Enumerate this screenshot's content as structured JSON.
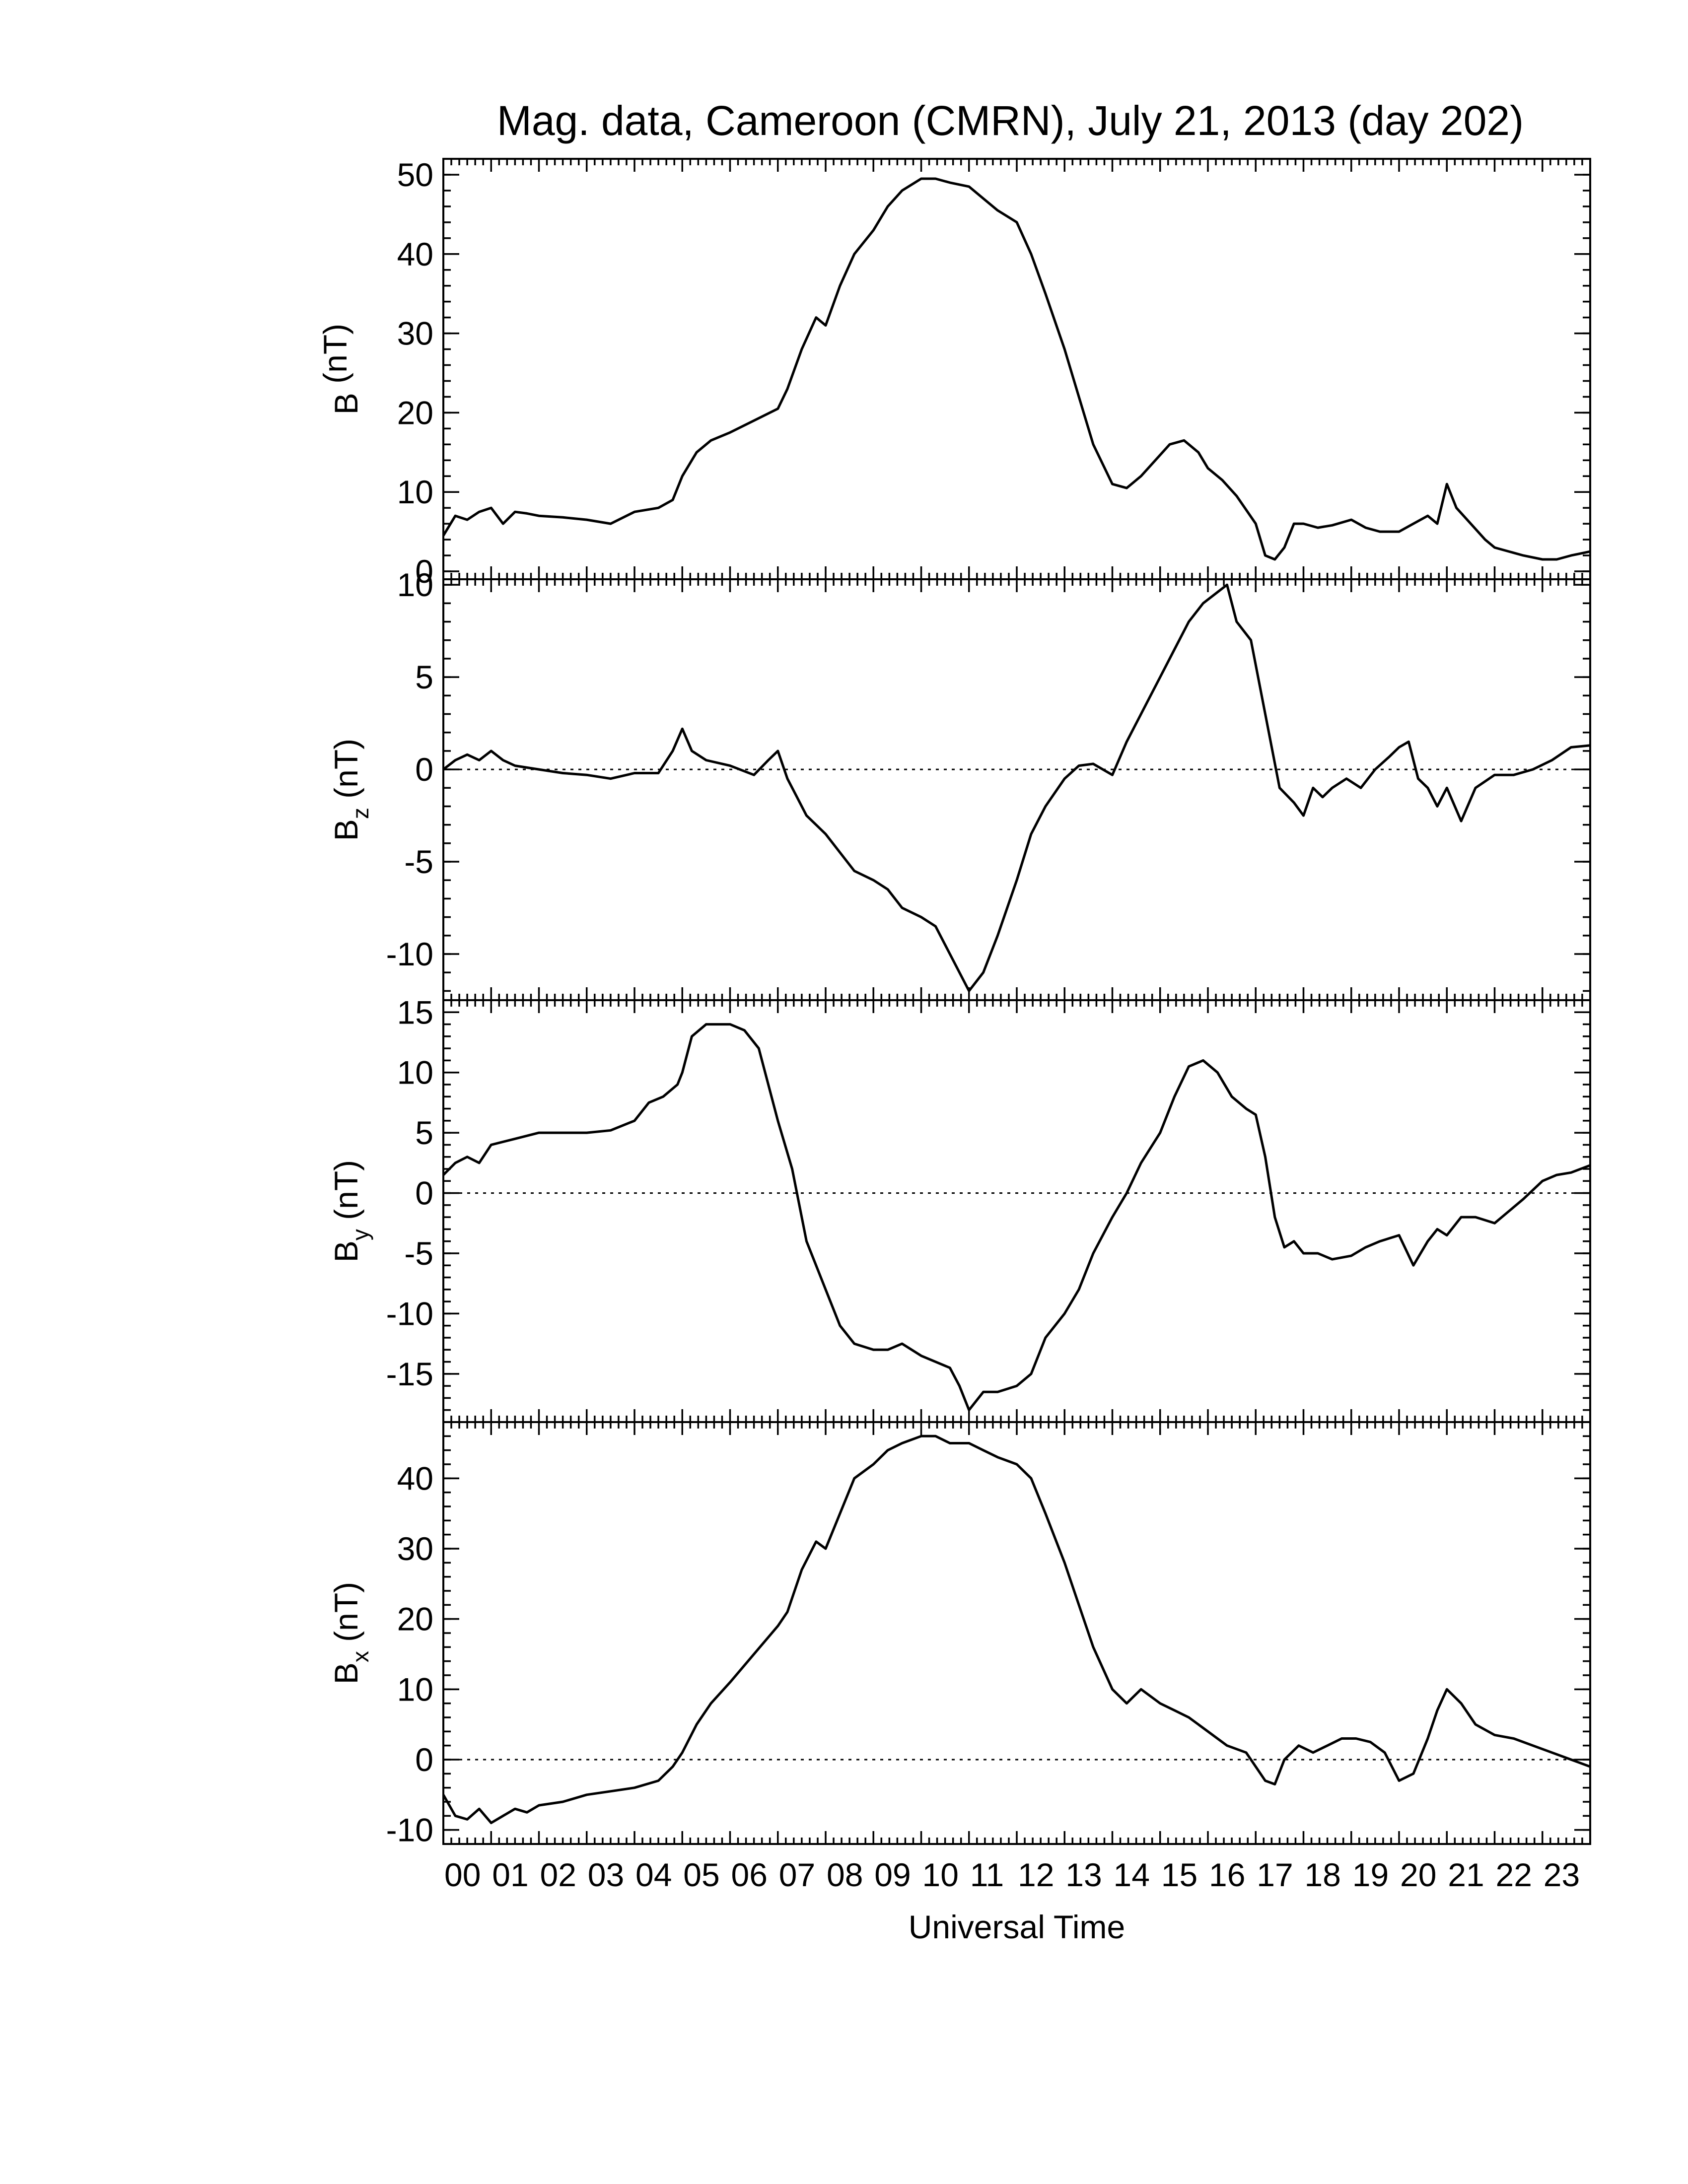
{
  "title": "Mag. data, Cameroon (CMRN), July 21, 2013 (day 202)",
  "xlabel": "Universal Time",
  "chart_data": [
    {
      "type": "line",
      "name": "B",
      "ylabel": "B (nT)",
      "ylabel_main": "B",
      "ylabel_sub": "",
      "ylabel_unit": " (nT)",
      "ylim": [
        -1,
        52
      ],
      "yticks": [
        0,
        10,
        20,
        30,
        40,
        50
      ],
      "ytick_labels": [
        "0",
        "10",
        "20",
        "30",
        "40",
        "50"
      ],
      "zero_line": false,
      "xlim": [
        0,
        24
      ],
      "xticks": [
        "00",
        "01",
        "02",
        "03",
        "04",
        "05",
        "06",
        "07",
        "08",
        "09",
        "10",
        "11",
        "12",
        "13",
        "14",
        "15",
        "16",
        "17",
        "18",
        "19",
        "20",
        "21",
        "22",
        "23"
      ],
      "x": [
        0,
        0.25,
        0.5,
        0.75,
        1,
        1.25,
        1.5,
        1.75,
        2,
        2.5,
        3,
        3.5,
        4,
        4.5,
        4.8,
        5,
        5.3,
        5.6,
        6,
        6.5,
        7,
        7.2,
        7.5,
        7.8,
        8,
        8.3,
        8.6,
        9,
        9.3,
        9.6,
        10,
        10.3,
        10.6,
        11,
        11.3,
        11.6,
        12,
        12.3,
        12.6,
        13,
        13.3,
        13.6,
        14,
        14.3,
        14.6,
        14.9,
        15.2,
        15.5,
        15.8,
        16,
        16.3,
        16.6,
        17,
        17.2,
        17.4,
        17.6,
        17.8,
        18,
        18.3,
        18.6,
        19,
        19.3,
        19.6,
        20,
        20.3,
        20.6,
        20.8,
        21,
        21.2,
        21.5,
        21.8,
        22,
        22.3,
        22.6,
        23,
        23.3,
        23.6,
        24
      ],
      "y": [
        4.5,
        7,
        6.5,
        7.5,
        8,
        6,
        7.5,
        7.3,
        7,
        6.8,
        6.5,
        6,
        7.5,
        8,
        9,
        12,
        15,
        16.5,
        17.5,
        19,
        20.5,
        23,
        28,
        32,
        31,
        36,
        40,
        43,
        46,
        48,
        49.5,
        49.5,
        49,
        48.5,
        47,
        45.5,
        44,
        40,
        35,
        28,
        22,
        16,
        11,
        10.5,
        12,
        14,
        16,
        16.5,
        15,
        13,
        11.5,
        9.5,
        6,
        2,
        1.5,
        3,
        6,
        6,
        5.5,
        5.8,
        6.5,
        5.5,
        5,
        5,
        6,
        7,
        6,
        11,
        8,
        6,
        4,
        3,
        2.5,
        2,
        1.5,
        1.5,
        2,
        2.5
      ]
    },
    {
      "type": "line",
      "name": "Bz",
      "ylabel": "Bz (nT)",
      "ylabel_main": "B",
      "ylabel_sub": "z",
      "ylabel_unit": " (nT)",
      "ylim": [
        -12.5,
        10.3
      ],
      "yticks": [
        -10,
        -5,
        0,
        5,
        10
      ],
      "ytick_labels": [
        "-10",
        "-5",
        "0",
        "5",
        "10"
      ],
      "zero_line": true,
      "xlim": [
        0,
        24
      ],
      "xticks": [
        "00",
        "01",
        "02",
        "03",
        "04",
        "05",
        "06",
        "07",
        "08",
        "09",
        "10",
        "11",
        "12",
        "13",
        "14",
        "15",
        "16",
        "17",
        "18",
        "19",
        "20",
        "21",
        "22",
        "23"
      ],
      "x": [
        0,
        0.25,
        0.5,
        0.75,
        1,
        1.25,
        1.5,
        2,
        2.5,
        3,
        3.5,
        4,
        4.5,
        4.8,
        5,
        5.2,
        5.5,
        6,
        6.5,
        6.8,
        7,
        7.2,
        7.4,
        7.6,
        7.8,
        8,
        8.3,
        8.6,
        9,
        9.3,
        9.6,
        10,
        10.3,
        10.6,
        11,
        11.3,
        11.6,
        12,
        12.3,
        12.6,
        13,
        13.3,
        13.6,
        14,
        14.3,
        14.6,
        15,
        15.3,
        15.6,
        15.9,
        16.2,
        16.4,
        16.6,
        16.9,
        17.2,
        17.5,
        17.8,
        18,
        18.2,
        18.4,
        18.6,
        18.9,
        19.2,
        19.5,
        19.8,
        20,
        20.2,
        20.4,
        20.6,
        20.8,
        21,
        21.3,
        21.6,
        22,
        22.4,
        22.8,
        23.2,
        23.6,
        24
      ],
      "y": [
        0,
        0.5,
        0.8,
        0.5,
        1,
        0.5,
        0.2,
        0,
        -0.2,
        -0.3,
        -0.5,
        -0.2,
        -0.2,
        1,
        2.2,
        1,
        0.5,
        0.2,
        -0.3,
        0.5,
        1,
        -0.5,
        -1.5,
        -2.5,
        -3,
        -3.5,
        -4.5,
        -5.5,
        -6,
        -6.5,
        -7.5,
        -8,
        -8.5,
        -10,
        -12,
        -11,
        -9,
        -6,
        -3.5,
        -2,
        -0.5,
        0.2,
        0.3,
        -0.3,
        1.5,
        3,
        5,
        6.5,
        8,
        9,
        9.6,
        10,
        8,
        7,
        3,
        -1,
        -1.8,
        -2.5,
        -1,
        -1.5,
        -1,
        -0.5,
        -1,
        0,
        0.7,
        1.2,
        1.5,
        -0.5,
        -1,
        -2,
        -1,
        -2.8,
        -1,
        -0.3,
        -0.3,
        0,
        0.5,
        1.2,
        1.3
      ]
    },
    {
      "type": "line",
      "name": "By",
      "ylabel": "By (nT)",
      "ylabel_main": "B",
      "ylabel_sub": "y",
      "ylabel_unit": " (nT)",
      "ylim": [
        -19,
        16
      ],
      "yticks": [
        -15,
        -10,
        -5,
        0,
        5,
        10,
        15
      ],
      "ytick_labels": [
        "-15",
        "-10",
        "-5",
        "0",
        "5",
        "10",
        "15"
      ],
      "zero_line": true,
      "xlim": [
        0,
        24
      ],
      "xticks": [
        "00",
        "01",
        "02",
        "03",
        "04",
        "05",
        "06",
        "07",
        "08",
        "09",
        "10",
        "11",
        "12",
        "13",
        "14",
        "15",
        "16",
        "17",
        "18",
        "19",
        "20",
        "21",
        "22",
        "23"
      ],
      "x": [
        0,
        0.25,
        0.5,
        0.75,
        1,
        1.5,
        2,
        2.5,
        3,
        3.5,
        4,
        4.3,
        4.6,
        4.9,
        5,
        5.2,
        5.5,
        6,
        6.3,
        6.6,
        7,
        7.3,
        7.6,
        8,
        8.3,
        8.6,
        9,
        9.3,
        9.6,
        10,
        10.3,
        10.6,
        10.8,
        11,
        11.3,
        11.6,
        12,
        12.3,
        12.6,
        13,
        13.3,
        13.6,
        14,
        14.3,
        14.6,
        15,
        15.3,
        15.6,
        15.9,
        16.2,
        16.5,
        16.8,
        17,
        17.2,
        17.4,
        17.6,
        17.8,
        18,
        18.3,
        18.6,
        19,
        19.3,
        19.6,
        20,
        20.3,
        20.6,
        20.8,
        21,
        21.3,
        21.6,
        22,
        22.3,
        22.6,
        23,
        23.3,
        23.6,
        24
      ],
      "y": [
        1.5,
        2.5,
        3,
        2.5,
        4,
        4.5,
        5,
        5,
        5,
        5.2,
        6,
        7.5,
        8,
        9,
        10,
        13,
        14,
        14,
        13.5,
        12,
        6,
        2,
        -4,
        -8,
        -11,
        -12.5,
        -13,
        -13,
        -12.5,
        -13.5,
        -14,
        -14.5,
        -16,
        -18,
        -16.5,
        -16.5,
        -16,
        -15,
        -12,
        -10,
        -8,
        -5,
        -2,
        0,
        2.5,
        5,
        8,
        10.5,
        11,
        10,
        8,
        7,
        6.5,
        3,
        -2,
        -4.5,
        -4,
        -5,
        -5,
        -5.5,
        -5.2,
        -4.5,
        -4,
        -3.5,
        -6,
        -4,
        -3,
        -3.5,
        -2,
        -2,
        -2.5,
        -1.5,
        -0.5,
        1,
        1.5,
        1.7,
        2.3
      ]
    },
    {
      "type": "line",
      "name": "Bx",
      "ylabel": "Bx (nT)",
      "ylabel_main": "B",
      "ylabel_sub": "x",
      "ylabel_unit": " (nT)",
      "ylim": [
        -12,
        48
      ],
      "yticks": [
        -10,
        0,
        10,
        20,
        30,
        40
      ],
      "ytick_labels": [
        "-10",
        "0",
        "10",
        "20",
        "30",
        "40"
      ],
      "zero_line": true,
      "xlim": [
        0,
        24
      ],
      "xticks": [
        "00",
        "01",
        "02",
        "03",
        "04",
        "05",
        "06",
        "07",
        "08",
        "09",
        "10",
        "11",
        "12",
        "13",
        "14",
        "15",
        "16",
        "17",
        "18",
        "19",
        "20",
        "21",
        "22",
        "23"
      ],
      "x": [
        0,
        0.25,
        0.5,
        0.75,
        1,
        1.25,
        1.5,
        1.75,
        2,
        2.5,
        3,
        3.5,
        4,
        4.5,
        4.8,
        5,
        5.3,
        5.6,
        6,
        6.5,
        7,
        7.2,
        7.5,
        7.8,
        8,
        8.3,
        8.6,
        9,
        9.3,
        9.6,
        10,
        10.3,
        10.6,
        11,
        11.3,
        11.6,
        12,
        12.3,
        12.6,
        13,
        13.3,
        13.6,
        14,
        14.3,
        14.6,
        15,
        15.3,
        15.6,
        16,
        16.4,
        16.8,
        17,
        17.2,
        17.4,
        17.6,
        17.9,
        18.2,
        18.5,
        18.8,
        19.1,
        19.4,
        19.7,
        20,
        20.3,
        20.6,
        20.8,
        21,
        21.3,
        21.6,
        22,
        22.4,
        22.8,
        23.2,
        23.6,
        24
      ],
      "y": [
        -5,
        -8,
        -8.5,
        -7,
        -9,
        -8,
        -7,
        -7.5,
        -6.5,
        -6,
        -5,
        -4.5,
        -4,
        -3,
        -1,
        1,
        5,
        8,
        11,
        15,
        19,
        21,
        27,
        31,
        30,
        35,
        40,
        42,
        44,
        45,
        46,
        46,
        45,
        45,
        44,
        43,
        42,
        40,
        35,
        28,
        22,
        16,
        10,
        8,
        10,
        8,
        7,
        6,
        4,
        2,
        1,
        -1,
        -3,
        -3.5,
        0,
        2,
        1,
        2,
        3,
        3,
        2.5,
        1,
        -3,
        -2,
        3,
        7,
        10,
        8,
        5,
        3.5,
        3,
        2,
        1,
        0,
        -1
      ]
    }
  ]
}
